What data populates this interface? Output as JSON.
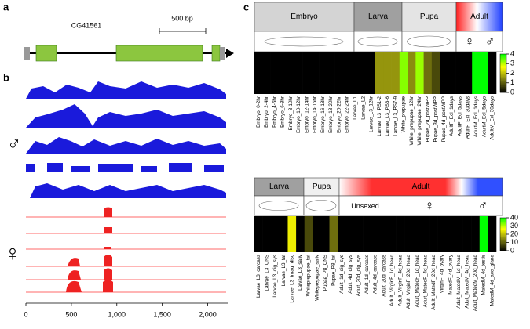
{
  "panel_labels": [
    "a",
    "b",
    "c"
  ],
  "gene_model": {
    "name": "CG41561",
    "scale_label": "500 bp"
  },
  "chart_data": [
    {
      "type": "coverage",
      "sex_labels": [
        "♂",
        "♀"
      ],
      "xlim": [
        0,
        2220
      ],
      "xticks": [
        0,
        500,
        {
          "value": 1000,
          "label": "1,000"
        },
        {
          "value": 1500,
          "label": "1,500"
        },
        {
          "value": 2000,
          "label": "2,000"
        }
      ]
    },
    {
      "type": "heatmap",
      "groups": [
        "Embryo",
        "Larva",
        "Pupa",
        "Adult"
      ],
      "sex_labels": [
        "♀",
        "♂"
      ],
      "categories": [
        "Embryo_0-2hr",
        "Embryo_2-4hr",
        "Embryo_4-6hr",
        "Embryo_6-8hr",
        "Embryo_8-10hr",
        "Embryo_10-12hr",
        "Embryo_12-14hr",
        "Embryo_14-16hr",
        "Embryo_16-18hr",
        "Embryo_18-20hr",
        "Embryo_20-22hr",
        "Embryo_22-24hr",
        "Larvae_L1",
        "Larvae_L2",
        "Larvae_L3_12hr",
        "Larvae_L3_PS1-2",
        "Larvae_L3_PS3-6",
        "Larvae_L3_PS7-9",
        "White_prepupae",
        "White_prepupae_12hr",
        "White_prepupae_24hr",
        "Pupae_2d_postWPP",
        "Pupae_3d_postWPP",
        "Pupae_4d_postWPP",
        "AdultF_Ecl_1days",
        "AdultF_Ecl_5days",
        "AdultF_Ecl_30days",
        "AdultM_Ecl_1days",
        "AdultM_Ecl_5days",
        "AdultM_Ecl_30days"
      ],
      "values": [
        0,
        0,
        0,
        0,
        0,
        0,
        0,
        0,
        0,
        0,
        0,
        0,
        0,
        0,
        0,
        1.6,
        1.6,
        1.6,
        3.3,
        1.5,
        3.2,
        1.2,
        0.8,
        0,
        0,
        0,
        0,
        4,
        4,
        0
      ],
      "colormap": [
        "#000000",
        "#7a7a10",
        "#ffff00",
        "#00ff00"
      ],
      "clim": [
        0,
        4
      ],
      "cticks": [
        0,
        1,
        2,
        3,
        4
      ]
    },
    {
      "type": "heatmap",
      "groups": [
        "Larva",
        "Pupa",
        "Adult"
      ],
      "sex_labels": [
        "Unsexed",
        "♀",
        "♂"
      ],
      "categories": [
        "Larvae_L3_carcass",
        "Larvae_L3_CNS",
        "Larvae_L3_dig_sys",
        "Larvae_L3_fat",
        "Larvae_L3_imag_disc",
        "Larvae_L3_saliv",
        "Whiteprepupae_fat",
        "Whiteprepupae_saliv",
        "Pupae_P8_CNS",
        "Pupae_P8_fat",
        "Adult_1d_dig_sys",
        "Adult_4d_dig_sys",
        "Adult_20d_dig_sys",
        "Adult_1d_carcass",
        "Adult_4d_carcass",
        "Adult_20d_carcass",
        "Adult_VirginF_1d_head",
        "Adult_VirginF_4d_head",
        "Adult_VirginF_20d_head",
        "Adult_MatedF_1d_head",
        "Adult_MatedF_4d_head",
        "Adult_MatedF_20d_head",
        "VirginF_4d_ovary",
        "MatedF_4d_ovary",
        "Adult_MatedM_1d_head",
        "Adult_MatedM_4d_head",
        "Adult_MatedM_20d_head",
        "MatedM_4d_testis",
        "MatedM_4d_acc_gland"
      ],
      "values": [
        0,
        0,
        0,
        0,
        25,
        0,
        8,
        0,
        0,
        12,
        0,
        0,
        0,
        0,
        0,
        0,
        0,
        0,
        0,
        0,
        0,
        0,
        0,
        0,
        0,
        0,
        0,
        40,
        0
      ],
      "colormap": [
        "#000000",
        "#7a7a10",
        "#ffff00",
        "#00ff00"
      ],
      "clim": [
        0,
        40
      ],
      "cticks": [
        0,
        10,
        20,
        30,
        40
      ]
    }
  ]
}
